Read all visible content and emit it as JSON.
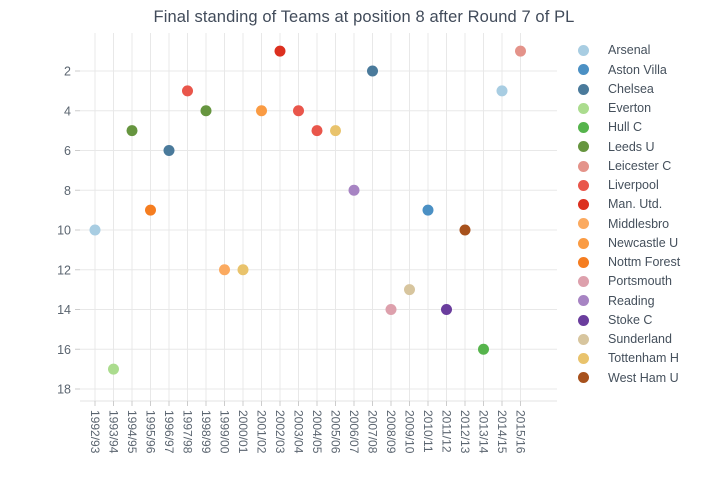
{
  "chart_data": {
    "type": "scatter",
    "title": "Final standing of Teams at position 8 after Round 7 of PL",
    "xlabel": "",
    "ylabel": "",
    "x_categories": [
      "1992/93",
      "1993/94",
      "1994/95",
      "1995/96",
      "1996/97",
      "1997/98",
      "1998/99",
      "1999/00",
      "2000/01",
      "2001/02",
      "2002/03",
      "2003/04",
      "2004/05",
      "2005/06",
      "2006/07",
      "2007/08",
      "2008/09",
      "2009/10",
      "2010/11",
      "2011/12",
      "2012/13",
      "2013/14",
      "2014/15",
      "2015/16"
    ],
    "y_ticks": [
      "2",
      "4",
      "6",
      "8",
      "10",
      "12",
      "14",
      "16",
      "18"
    ],
    "y_axis_reversed": true,
    "y_range": [
      0.1,
      18.6
    ],
    "grid": true,
    "legend_position": "right",
    "teams": [
      {
        "name": "Arsenal",
        "color": "#a8cde2"
      },
      {
        "name": "Aston Villa",
        "color": "#4b90c4"
      },
      {
        "name": "Chelsea",
        "color": "#4a7a9b"
      },
      {
        "name": "Everton",
        "color": "#abdc8e"
      },
      {
        "name": "Hull C",
        "color": "#56b44c"
      },
      {
        "name": "Leeds U",
        "color": "#66953f"
      },
      {
        "name": "Leicester C",
        "color": "#e4938a"
      },
      {
        "name": "Liverpool",
        "color": "#e9564b"
      },
      {
        "name": "Man. Utd.",
        "color": "#dc301f"
      },
      {
        "name": "Middlesbro",
        "color": "#fbaa60"
      },
      {
        "name": "Newcastle U",
        "color": "#fa9b43"
      },
      {
        "name": "Nottm Forest",
        "color": "#f57d20"
      },
      {
        "name": "Portsmouth",
        "color": "#dda0ac"
      },
      {
        "name": "Reading",
        "color": "#a784c3"
      },
      {
        "name": "Stoke C",
        "color": "#6a3d9d"
      },
      {
        "name": "Sunderland",
        "color": "#d7c59e"
      },
      {
        "name": "Tottenham H",
        "color": "#e9c36c"
      },
      {
        "name": "West Ham U",
        "color": "#a7511c"
      }
    ],
    "points": [
      {
        "season": "1992/93",
        "team": "Arsenal",
        "final_position": 10
      },
      {
        "season": "1993/94",
        "team": "Everton",
        "final_position": 17
      },
      {
        "season": "1994/95",
        "team": "Leeds U",
        "final_position": 5
      },
      {
        "season": "1995/96",
        "team": "Nottm Forest",
        "final_position": 9
      },
      {
        "season": "1996/97",
        "team": "Chelsea",
        "final_position": 6
      },
      {
        "season": "1997/98",
        "team": "Liverpool",
        "final_position": 3
      },
      {
        "season": "1998/99",
        "team": "Leeds U",
        "final_position": 4
      },
      {
        "season": "1999/00",
        "team": "Middlesbro",
        "final_position": 12
      },
      {
        "season": "2000/01",
        "team": "Tottenham H",
        "final_position": 12
      },
      {
        "season": "2001/02",
        "team": "Newcastle U",
        "final_position": 4
      },
      {
        "season": "2002/03",
        "team": "Man. Utd.",
        "final_position": 1
      },
      {
        "season": "2003/04",
        "team": "Liverpool",
        "final_position": 4
      },
      {
        "season": "2004/05",
        "team": "Liverpool",
        "final_position": 5
      },
      {
        "season": "2005/06",
        "team": "Tottenham H",
        "final_position": 5
      },
      {
        "season": "2006/07",
        "team": "Reading",
        "final_position": 8
      },
      {
        "season": "2007/08",
        "team": "Chelsea",
        "final_position": 2
      },
      {
        "season": "2008/09",
        "team": "Portsmouth",
        "final_position": 14
      },
      {
        "season": "2009/10",
        "team": "Sunderland",
        "final_position": 13
      },
      {
        "season": "2010/11",
        "team": "Aston Villa",
        "final_position": 9
      },
      {
        "season": "2011/12",
        "team": "Stoke C",
        "final_position": 14
      },
      {
        "season": "2012/13",
        "team": "West Ham U",
        "final_position": 10
      },
      {
        "season": "2013/14",
        "team": "Hull C",
        "final_position": 16
      },
      {
        "season": "2014/15",
        "team": "Arsenal",
        "final_position": 3
      },
      {
        "season": "2015/16",
        "team": "Leicester C",
        "final_position": 1
      }
    ]
  },
  "style": {
    "background": "#ffffff",
    "grid_color": "#e8e8e8",
    "axis_line_color": "#e3e3e3",
    "tick_mark_color": "#cccccc",
    "tick_text_color": "#5b6570",
    "title_text_color": "#414b5a",
    "legend_text_color": "#45505c"
  }
}
